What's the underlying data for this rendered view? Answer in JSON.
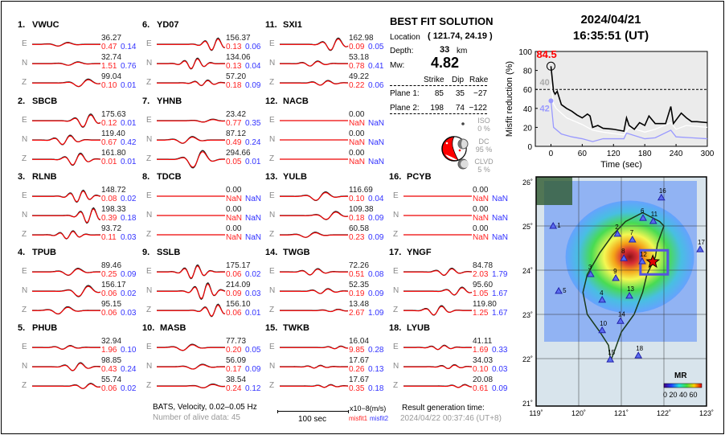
{
  "stations": [
    {
      "num": "1.",
      "name": "VWUC",
      "comps": [
        {
          "c": "E",
          "amp": "36.27",
          "m1": "0.47",
          "m2": "0.14"
        },
        {
          "c": "N",
          "amp": "32.74",
          "m1": "1.51",
          "m2": "0.76"
        },
        {
          "c": "Z",
          "amp": "99.04",
          "m1": "0.10",
          "m2": "0.01"
        }
      ]
    },
    {
      "num": "2.",
      "name": "SBCB",
      "comps": [
        {
          "c": "E",
          "amp": "175.63",
          "m1": "0.12",
          "m2": "0.01"
        },
        {
          "c": "N",
          "amp": "119.40",
          "m1": "0.67",
          "m2": "0.42"
        },
        {
          "c": "Z",
          "amp": "161.80",
          "m1": "0.01",
          "m2": "0.01"
        }
      ]
    },
    {
      "num": "3.",
      "name": "RLNB",
      "comps": [
        {
          "c": "E",
          "amp": "148.72",
          "m1": "0.08",
          "m2": "0.02"
        },
        {
          "c": "N",
          "amp": "198.33",
          "m1": "0.39",
          "m2": "0.18"
        },
        {
          "c": "Z",
          "amp": "93.72",
          "m1": "0.11",
          "m2": "0.03"
        }
      ]
    },
    {
      "num": "4.",
      "name": "TPUB",
      "comps": [
        {
          "c": "E",
          "amp": "89.46",
          "m1": "0.25",
          "m2": "0.09"
        },
        {
          "c": "N",
          "amp": "156.17",
          "m1": "0.06",
          "m2": "0.02"
        },
        {
          "c": "Z",
          "amp": "95.15",
          "m1": "0.06",
          "m2": "0.03"
        }
      ]
    },
    {
      "num": "5.",
      "name": "PHUB",
      "comps": [
        {
          "c": "E",
          "amp": "32.94",
          "m1": "1.96",
          "m2": "0.10"
        },
        {
          "c": "N",
          "amp": "98.85",
          "m1": "0.43",
          "m2": "0.24"
        },
        {
          "c": "Z",
          "amp": "55.74",
          "m1": "0.06",
          "m2": "0.02"
        }
      ]
    },
    {
      "num": "6.",
      "name": "YD07",
      "comps": [
        {
          "c": "E",
          "amp": "156.37",
          "m1": "0.13",
          "m2": "0.06"
        },
        {
          "c": "N",
          "amp": "134.06",
          "m1": "0.13",
          "m2": "0.04"
        },
        {
          "c": "Z",
          "amp": "57.20",
          "m1": "0.18",
          "m2": "0.09"
        }
      ]
    },
    {
      "num": "7.",
      "name": "YHNB",
      "comps": [
        {
          "c": "E",
          "amp": "23.42",
          "m1": "0.77",
          "m2": "0.35"
        },
        {
          "c": "N",
          "amp": "87.12",
          "m1": "0.49",
          "m2": "0.24"
        },
        {
          "c": "Z",
          "amp": "294.66",
          "m1": "0.05",
          "m2": "0.01"
        }
      ]
    },
    {
      "num": "8.",
      "name": "TDCB",
      "comps": [
        {
          "c": "E",
          "amp": "0.00",
          "m1": "NaN",
          "m2": "NaN"
        },
        {
          "c": "N",
          "amp": "0.00",
          "m1": "NaN",
          "m2": "NaN"
        },
        {
          "c": "Z",
          "amp": "0.00",
          "m1": "NaN",
          "m2": "NaN"
        }
      ]
    },
    {
      "num": "9.",
      "name": "SSLB",
      "comps": [
        {
          "c": "E",
          "amp": "175.17",
          "m1": "0.06",
          "m2": "0.02"
        },
        {
          "c": "N",
          "amp": "214.09",
          "m1": "0.09",
          "m2": "0.03"
        },
        {
          "c": "Z",
          "amp": "156.10",
          "m1": "0.06",
          "m2": "0.01"
        }
      ]
    },
    {
      "num": "10.",
      "name": "MASB",
      "comps": [
        {
          "c": "E",
          "amp": "77.73",
          "m1": "0.20",
          "m2": "0.05"
        },
        {
          "c": "N",
          "amp": "56.09",
          "m1": "0.17",
          "m2": "0.09"
        },
        {
          "c": "Z",
          "amp": "38.54",
          "m1": "0.24",
          "m2": "0.12"
        }
      ]
    },
    {
      "num": "11.",
      "name": "SXI1",
      "comps": [
        {
          "c": "E",
          "amp": "162.98",
          "m1": "0.09",
          "m2": "0.05"
        },
        {
          "c": "N",
          "amp": "53.18",
          "m1": "0.78",
          "m2": "0.41"
        },
        {
          "c": "Z",
          "amp": "49.22",
          "m1": "0.22",
          "m2": "0.06"
        }
      ]
    },
    {
      "num": "12.",
      "name": "NACB",
      "comps": [
        {
          "c": "E",
          "amp": "0.00",
          "m1": "NaN",
          "m2": "NaN"
        },
        {
          "c": "N",
          "amp": "0.00",
          "m1": "NaN",
          "m2": "NaN"
        },
        {
          "c": "Z",
          "amp": "0.00",
          "m1": "NaN",
          "m2": "NaN"
        }
      ]
    },
    {
      "num": "13.",
      "name": "YULB",
      "comps": [
        {
          "c": "E",
          "amp": "116.69",
          "m1": "0.10",
          "m2": "0.04"
        },
        {
          "c": "N",
          "amp": "109.38",
          "m1": "0.18",
          "m2": "0.09"
        },
        {
          "c": "Z",
          "amp": "60.58",
          "m1": "0.23",
          "m2": "0.09"
        }
      ]
    },
    {
      "num": "14.",
      "name": "TWGB",
      "comps": [
        {
          "c": "E",
          "amp": "72.26",
          "m1": "0.51",
          "m2": "0.08"
        },
        {
          "c": "N",
          "amp": "52.35",
          "m1": "0.19",
          "m2": "0.09"
        },
        {
          "c": "Z",
          "amp": "13.48",
          "m1": "2.67",
          "m2": "1.09"
        }
      ]
    },
    {
      "num": "15.",
      "name": "TWKB",
      "comps": [
        {
          "c": "E",
          "amp": "16.04",
          "m1": "9.85",
          "m2": "0.28"
        },
        {
          "c": "N",
          "amp": "17.67",
          "m1": "0.26",
          "m2": "0.13"
        },
        {
          "c": "Z",
          "amp": "17.67",
          "m1": "0.35",
          "m2": "0.18"
        }
      ]
    },
    {
      "num": "16.",
      "name": "PCYB",
      "comps": [
        {
          "c": "E",
          "amp": "0.00",
          "m1": "NaN",
          "m2": "NaN"
        },
        {
          "c": "N",
          "amp": "0.00",
          "m1": "NaN",
          "m2": "NaN"
        },
        {
          "c": "Z",
          "amp": "0.00",
          "m1": "NaN",
          "m2": "NaN"
        }
      ]
    },
    {
      "num": "17.",
      "name": "YNGF",
      "comps": [
        {
          "c": "E",
          "amp": "84.78",
          "m1": "2.03",
          "m2": "1.79"
        },
        {
          "c": "N",
          "amp": "95.60",
          "m1": "1.05",
          "m2": "1.67"
        },
        {
          "c": "Z",
          "amp": "119.80",
          "m1": "1.25",
          "m2": "1.67"
        }
      ]
    },
    {
      "num": "18.",
      "name": "LYUB",
      "comps": [
        {
          "c": "E",
          "amp": "41.11",
          "m1": "1.69",
          "m2": "0.33"
        },
        {
          "c": "N",
          "amp": "34.03",
          "m1": "0.10",
          "m2": "0.03"
        },
        {
          "c": "Z",
          "amp": "20.08",
          "m1": "0.61",
          "m2": "0.09"
        }
      ]
    }
  ],
  "solution": {
    "title": "BEST FIT SOLUTION",
    "location_label": "Location",
    "location_value": "( 121.74,  24.19 )",
    "depth_label": "Depth:",
    "depth_value": "33",
    "depth_unit": "km",
    "mw_label": "Mw:",
    "mw_value": "4.82",
    "headers": [
      "Strike",
      "Dip",
      "Rake"
    ],
    "planes": [
      {
        "label": "Plane 1:",
        "strike": "85",
        "dip": "35",
        "rake": "−27"
      },
      {
        "label": "Plane 2:",
        "strike": "198",
        "dip": "74",
        "rake": "−122"
      }
    ],
    "iso_label": "ISO",
    "iso_value": "0 %",
    "dc_label": "DC",
    "dc_value": "95 %",
    "clvd_label": "CLVD",
    "clvd_value": "5 %"
  },
  "header": {
    "date": "2024/04/21",
    "time": "16:35:51  (UT)"
  },
  "footer": {
    "info": "BATS, Velocity, 0.02–0.05 Hz",
    "alive": "Number of alive data: 45",
    "scale_label": "100 sec",
    "units": "x10−8(m/s)",
    "misfit1": "misfit1",
    "misfit2": "misfit2",
    "gen_label": "Result generation time:",
    "gen_time": "2024/04/22 00:37:46 (UT+8)"
  },
  "chart_data": {
    "type": "line",
    "xlabel": "Time (sec)",
    "ylabel": "Misfit reduction (%)",
    "xlim": [
      -30,
      300
    ],
    "ylim": [
      0,
      100
    ],
    "xticks": [
      "0",
      "60",
      "120",
      "180",
      "240",
      "300"
    ],
    "yticks": [
      "0",
      "20",
      "40",
      "60",
      "80",
      "100"
    ],
    "threshold": 60,
    "peak_label": "84.5",
    "label_white": "40",
    "label_blue": "42",
    "series": [
      {
        "name": "best",
        "color": "#000000",
        "x": [
          0,
          5,
          8,
          12,
          20,
          30,
          40,
          50,
          60,
          70,
          75,
          80,
          90,
          100,
          120,
          140,
          145,
          150,
          160,
          170,
          180,
          188,
          200,
          220,
          230,
          235,
          250,
          260,
          270,
          280,
          300
        ],
        "y": [
          84.5,
          58,
          55,
          58,
          44,
          40,
          37,
          33,
          30,
          34,
          32,
          20,
          22,
          19,
          18,
          16,
          30,
          22,
          18,
          25,
          22,
          32,
          24,
          24,
          42,
          24,
          35,
          30,
          26,
          26,
          25
        ]
      },
      {
        "name": "white",
        "color": "#ffffff",
        "x": [
          0,
          5,
          10,
          30,
          60,
          80,
          100,
          140,
          150,
          180,
          200,
          230,
          240,
          260,
          300
        ],
        "y": [
          65,
          45,
          40,
          30,
          23,
          17,
          15,
          12,
          20,
          15,
          18,
          25,
          18,
          22,
          20
        ]
      },
      {
        "name": "blue",
        "color": "#9999ff",
        "x": [
          0,
          5,
          20,
          40,
          60,
          80,
          100,
          140,
          145,
          180,
          200,
          230,
          240,
          270,
          300
        ],
        "y": [
          48,
          20,
          13,
          10,
          8,
          5,
          8,
          8,
          14,
          8,
          9,
          17,
          10,
          9,
          8
        ]
      }
    ]
  },
  "map": {
    "lon_ticks": [
      "119˚",
      "120˚",
      "121˚",
      "122˚",
      "123˚"
    ],
    "lat_ticks": [
      "26˚",
      "25˚",
      "24˚",
      "23˚",
      "22˚",
      "21˚"
    ],
    "colorbar_title": "MR",
    "colorbar_ticks": "0 20 40 60",
    "event": {
      "lon": 121.74,
      "lat": 24.19
    },
    "stations": [
      {
        "n": "1",
        "lon": 119.4,
        "lat": 25.0
      },
      {
        "n": "2",
        "lon": 120.91,
        "lat": 24.82
      },
      {
        "n": "3",
        "lon": 120.28,
        "lat": 23.91
      },
      {
        "n": "4",
        "lon": 120.55,
        "lat": 23.33
      },
      {
        "n": "5",
        "lon": 119.53,
        "lat": 23.53
      },
      {
        "n": "6",
        "lon": 121.51,
        "lat": 25.18
      },
      {
        "n": "7",
        "lon": 121.26,
        "lat": 24.69
      },
      {
        "n": "8",
        "lon": 121.06,
        "lat": 24.27
      },
      {
        "n": "9",
        "lon": 120.87,
        "lat": 23.82
      },
      {
        "n": "10",
        "lon": 120.55,
        "lat": 22.64
      },
      {
        "n": "11",
        "lon": 121.75,
        "lat": 25.11
      },
      {
        "n": "12",
        "lon": 121.49,
        "lat": 24.2
      },
      {
        "n": "13",
        "lon": 121.19,
        "lat": 23.42
      },
      {
        "n": "14",
        "lon": 120.98,
        "lat": 22.85
      },
      {
        "n": "15",
        "lon": 120.74,
        "lat": 21.98
      },
      {
        "n": "16",
        "lon": 121.94,
        "lat": 25.64
      },
      {
        "n": "17",
        "lon": 122.85,
        "lat": 24.47
      },
      {
        "n": "18",
        "lon": 121.4,
        "lat": 22.07
      }
    ]
  }
}
